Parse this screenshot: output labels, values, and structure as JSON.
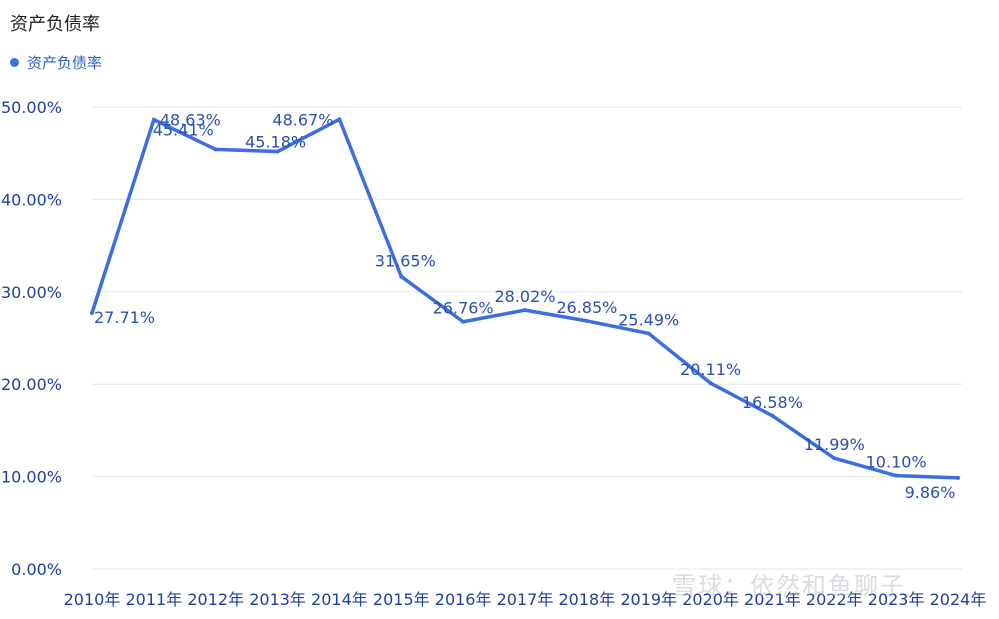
{
  "chart_data": {
    "type": "line",
    "title": "资产负债率",
    "legend": "资产负债率",
    "legend_position": "top-left",
    "categories": [
      "2010年",
      "2011年",
      "2012年",
      "2013年",
      "2014年",
      "2015年",
      "2016年",
      "2017年",
      "2018年",
      "2019年",
      "2020年",
      "2021年",
      "2022年",
      "2023年",
      "2024年"
    ],
    "series": [
      {
        "name": "资产负债率",
        "values": [
          27.71,
          48.63,
          45.41,
          45.18,
          48.67,
          31.65,
          26.76,
          28.02,
          26.85,
          25.49,
          20.11,
          16.58,
          11.99,
          10.1,
          9.86
        ],
        "labels": [
          "27.71%",
          "48.63%",
          "45.41%",
          "45.18%",
          "48.67%",
          "31.65%",
          "26.76%",
          "28.02%",
          "26.85%",
          "25.49%",
          "20.11%",
          "16.58%",
          "11.99%",
          "10.10%",
          "9.86%"
        ]
      }
    ],
    "ylim": [
      0,
      50
    ],
    "yticks": [
      "0.00%",
      "10.00%",
      "20.00%",
      "30.00%",
      "40.00%",
      "50.00%"
    ],
    "grid": true,
    "colors": {
      "line": "#3b6fe0",
      "grid": "#e6e6e6",
      "tick": "#1f3f9f"
    }
  },
  "watermark": "雪球：依然和鱼聊子"
}
